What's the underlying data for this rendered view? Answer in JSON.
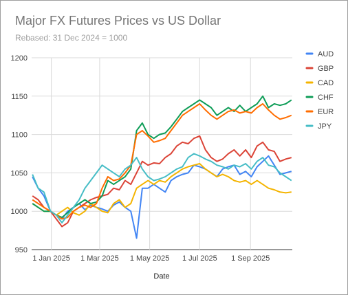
{
  "chart_data": {
    "type": "line",
    "title": "Major FX Futures Prices vs US Dollar",
    "subtitle": "Rebased:  31 Dec 2024 = 1000",
    "xlabel": "Date",
    "ylabel": "",
    "ylim": [
      950,
      1200
    ],
    "yticks": [
      950,
      1000,
      1050,
      1100,
      1150,
      1200
    ],
    "xlim": [
      "2024-12-08",
      "2025-10-22"
    ],
    "xticks": [
      {
        "date": "2025-01-01",
        "label": "1 Jan 2025"
      },
      {
        "date": "2025-03-01",
        "label": "1 Mar 2025"
      },
      {
        "date": "2025-05-01",
        "label": "1 May 2025"
      },
      {
        "date": "2025-07-01",
        "label": "1 Jul 2025"
      },
      {
        "date": "2025-09-01",
        "label": "1 Sep 2025"
      }
    ],
    "grid": true,
    "legend": "right",
    "x": [
      "2024-12-09",
      "2024-12-16",
      "2024-12-23",
      "2024-12-31",
      "2025-01-07",
      "2025-01-14",
      "2025-01-21",
      "2025-01-28",
      "2025-02-04",
      "2025-02-11",
      "2025-02-18",
      "2025-02-25",
      "2025-03-04",
      "2025-03-11",
      "2025-03-18",
      "2025-03-25",
      "2025-04-01",
      "2025-04-08",
      "2025-04-15",
      "2025-04-22",
      "2025-04-29",
      "2025-05-06",
      "2025-05-13",
      "2025-05-20",
      "2025-05-27",
      "2025-06-03",
      "2025-06-10",
      "2025-06-17",
      "2025-06-24",
      "2025-07-01",
      "2025-07-08",
      "2025-07-15",
      "2025-07-22",
      "2025-07-29",
      "2025-08-05",
      "2025-08-12",
      "2025-08-19",
      "2025-08-26",
      "2025-09-02",
      "2025-09-09",
      "2025-09-16",
      "2025-09-23",
      "2025-09-30",
      "2025-10-07",
      "2025-10-14",
      "2025-10-21"
    ],
    "series": [
      {
        "name": "AUD",
        "color": "#4285f4",
        "values": [
          1045,
          1030,
          1020,
          1000,
          995,
          990,
          1000,
          1005,
          1010,
          1002,
          1008,
          1005,
          1003,
          1000,
          1008,
          1012,
          1005,
          1000,
          965,
          1030,
          1030,
          1035,
          1030,
          1025,
          1040,
          1045,
          1048,
          1050,
          1060,
          1058,
          1055,
          1050,
          1045,
          1055,
          1058,
          1060,
          1048,
          1052,
          1045,
          1058,
          1065,
          1072,
          1060,
          1048,
          1050,
          1052
        ]
      },
      {
        "name": "GBP",
        "color": "#db4437",
        "values": [
          1020,
          1015,
          1005,
          1000,
          990,
          980,
          985,
          1000,
          1005,
          1010,
          1015,
          1018,
          1020,
          1022,
          1030,
          1028,
          1040,
          1035,
          1050,
          1065,
          1060,
          1063,
          1062,
          1070,
          1075,
          1085,
          1090,
          1088,
          1095,
          1098,
          1080,
          1070,
          1065,
          1068,
          1075,
          1080,
          1072,
          1080,
          1070,
          1085,
          1090,
          1080,
          1078,
          1065,
          1068,
          1070
        ]
      },
      {
        "name": "CAD",
        "color": "#f4b400",
        "values": [
          1010,
          1005,
          1000,
          1000,
          995,
          1000,
          1005,
          998,
          995,
          1000,
          1010,
          1005,
          1000,
          998,
          1010,
          1015,
          1005,
          1010,
          1030,
          1035,
          1040,
          1035,
          1040,
          1038,
          1045,
          1050,
          1055,
          1058,
          1060,
          1062,
          1055,
          1050,
          1045,
          1048,
          1045,
          1040,
          1038,
          1040,
          1035,
          1040,
          1035,
          1030,
          1028,
          1025,
          1024,
          1025
        ]
      },
      {
        "name": "CHF",
        "color": "#0f9d58",
        "values": [
          1010,
          1005,
          1000,
          1000,
          995,
          992,
          998,
          1005,
          1010,
          1015,
          1010,
          1012,
          1020,
          1040,
          1035,
          1040,
          1045,
          1055,
          1105,
          1115,
          1100,
          1095,
          1100,
          1102,
          1110,
          1120,
          1130,
          1135,
          1140,
          1145,
          1140,
          1135,
          1125,
          1130,
          1135,
          1130,
          1138,
          1130,
          1135,
          1140,
          1150,
          1135,
          1140,
          1138,
          1140,
          1145
        ]
      },
      {
        "name": "EUR",
        "color": "#ff6d00",
        "values": [
          1015,
          1010,
          1005,
          1000,
          995,
          990,
          992,
          1000,
          1005,
          1008,
          1005,
          1010,
          1030,
          1045,
          1040,
          1042,
          1050,
          1060,
          1100,
          1105,
          1098,
          1090,
          1092,
          1095,
          1105,
          1115,
          1125,
          1130,
          1135,
          1140,
          1132,
          1125,
          1120,
          1125,
          1130,
          1132,
          1128,
          1130,
          1128,
          1135,
          1140,
          1132,
          1125,
          1120,
          1122,
          1125
        ]
      },
      {
        "name": "JPY",
        "color": "#46bdc6",
        "values": [
          1048,
          1030,
          1025,
          1000,
          995,
          985,
          995,
          1005,
          1015,
          1030,
          1040,
          1050,
          1060,
          1055,
          1050,
          1045,
          1055,
          1060,
          1070,
          1055,
          1045,
          1040,
          1042,
          1045,
          1050,
          1055,
          1058,
          1070,
          1075,
          1072,
          1068,
          1065,
          1060,
          1058,
          1055,
          1060,
          1058,
          1062,
          1055,
          1065,
          1070,
          1060,
          1058,
          1050,
          1045,
          1040
        ]
      }
    ]
  }
}
